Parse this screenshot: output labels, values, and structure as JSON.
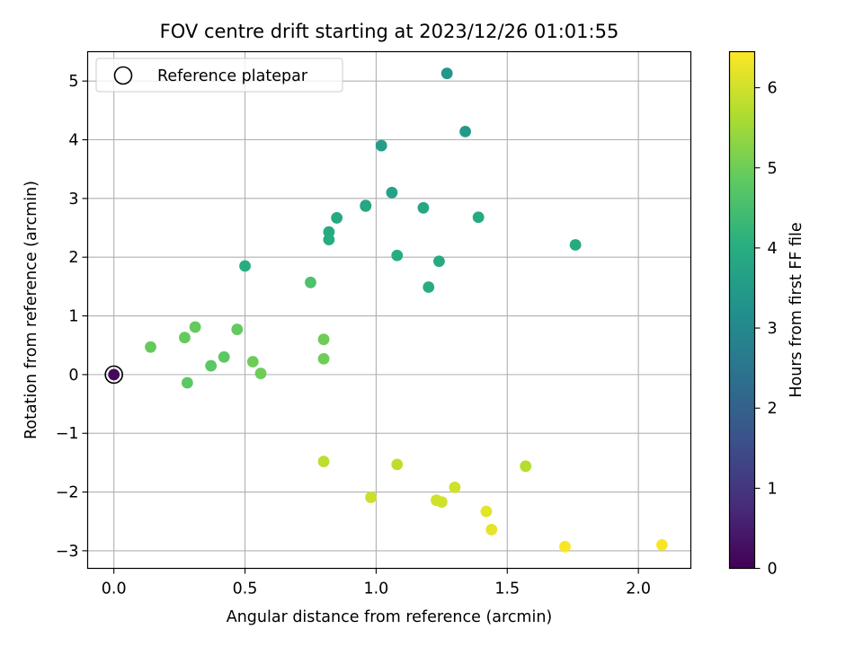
{
  "chart_data": {
    "type": "scatter",
    "title": "FOV centre drift starting at 2023/12/26 01:01:55",
    "xlabel": "Angular distance from reference (arcmin)",
    "ylabel": "Rotation from reference (arcmin)",
    "xlim": [
      -0.1,
      2.2
    ],
    "ylim": [
      -3.3,
      5.5
    ],
    "x_ticks": [
      0.0,
      0.5,
      1.0,
      1.5,
      2.0
    ],
    "x_tick_labels": [
      "0.0",
      "0.5",
      "1.0",
      "1.5",
      "2.0"
    ],
    "y_ticks": [
      -3,
      -2,
      -1,
      0,
      1,
      2,
      3,
      4,
      5
    ],
    "y_tick_labels": [
      "−3",
      "−2",
      "−1",
      "0",
      "1",
      "2",
      "3",
      "4",
      "5"
    ],
    "grid": true,
    "legend": {
      "placement": "top-left",
      "entries": [
        {
          "label": "Reference platepar",
          "marker": "hollow-circle",
          "color": "#000000"
        }
      ]
    },
    "colorbar": {
      "label": "Hours from first FF file",
      "colormap": "viridis",
      "range": [
        0,
        6.45
      ],
      "ticks": [
        0,
        1,
        2,
        3,
        4,
        5,
        6
      ],
      "tick_labels": [
        "0",
        "1",
        "2",
        "3",
        "4",
        "5",
        "6"
      ]
    },
    "reference_point": {
      "x": 0.0,
      "y": 0.0
    },
    "points": [
      {
        "x": 0.0,
        "y": 0.0,
        "hours": 0.15
      },
      {
        "x": 1.27,
        "y": 5.13,
        "hours": 3.4
      },
      {
        "x": 1.34,
        "y": 4.14,
        "hours": 3.5
      },
      {
        "x": 1.02,
        "y": 3.9,
        "hours": 3.6
      },
      {
        "x": 1.06,
        "y": 3.1,
        "hours": 3.7
      },
      {
        "x": 0.96,
        "y": 2.88,
        "hours": 3.8
      },
      {
        "x": 1.18,
        "y": 2.84,
        "hours": 3.8
      },
      {
        "x": 0.96,
        "y": 2.87,
        "hours": 3.8
      },
      {
        "x": 0.85,
        "y": 2.67,
        "hours": 3.9
      },
      {
        "x": 1.39,
        "y": 2.68,
        "hours": 3.9
      },
      {
        "x": 0.82,
        "y": 2.43,
        "hours": 3.9
      },
      {
        "x": 0.82,
        "y": 2.3,
        "hours": 3.95
      },
      {
        "x": 1.76,
        "y": 2.21,
        "hours": 3.9
      },
      {
        "x": 1.08,
        "y": 2.03,
        "hours": 4.0
      },
      {
        "x": 1.24,
        "y": 1.93,
        "hours": 3.9
      },
      {
        "x": 0.5,
        "y": 1.85,
        "hours": 4.0
      },
      {
        "x": 1.2,
        "y": 1.49,
        "hours": 4.0
      },
      {
        "x": 0.75,
        "y": 1.57,
        "hours": 4.6
      },
      {
        "x": 0.31,
        "y": 0.81,
        "hours": 4.9
      },
      {
        "x": 0.47,
        "y": 0.77,
        "hours": 4.9
      },
      {
        "x": 0.27,
        "y": 0.63,
        "hours": 4.9
      },
      {
        "x": 0.8,
        "y": 0.6,
        "hours": 5.0
      },
      {
        "x": 0.14,
        "y": 0.47,
        "hours": 4.9
      },
      {
        "x": 0.42,
        "y": 0.3,
        "hours": 4.8
      },
      {
        "x": 0.8,
        "y": 0.27,
        "hours": 5.0
      },
      {
        "x": 0.53,
        "y": 0.22,
        "hours": 5.0
      },
      {
        "x": 0.37,
        "y": 0.15,
        "hours": 4.8
      },
      {
        "x": 0.56,
        "y": 0.02,
        "hours": 5.0
      },
      {
        "x": 0.28,
        "y": -0.14,
        "hours": 4.8
      },
      {
        "x": 0.8,
        "y": -1.48,
        "hours": 5.8
      },
      {
        "x": 1.08,
        "y": -1.53,
        "hours": 5.8
      },
      {
        "x": 1.57,
        "y": -1.56,
        "hours": 5.7
      },
      {
        "x": 1.3,
        "y": -1.92,
        "hours": 6.0
      },
      {
        "x": 0.98,
        "y": -2.09,
        "hours": 5.95
      },
      {
        "x": 1.23,
        "y": -2.14,
        "hours": 6.0
      },
      {
        "x": 1.25,
        "y": -2.17,
        "hours": 6.0
      },
      {
        "x": 1.42,
        "y": -2.33,
        "hours": 6.2
      },
      {
        "x": 1.44,
        "y": -2.64,
        "hours": 6.2
      },
      {
        "x": 1.72,
        "y": -2.93,
        "hours": 6.4
      },
      {
        "x": 2.09,
        "y": -2.9,
        "hours": 6.4
      }
    ]
  }
}
